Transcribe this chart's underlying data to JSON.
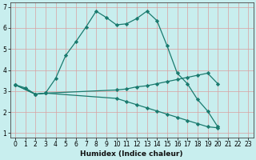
{
  "line1_x": [
    0,
    1,
    2,
    3,
    4,
    5,
    6,
    7,
    8,
    9,
    10,
    11,
    12,
    13,
    14,
    15,
    16,
    17,
    18,
    19,
    20
  ],
  "line1_y": [
    3.3,
    3.15,
    2.85,
    2.9,
    3.6,
    4.7,
    5.35,
    6.05,
    6.8,
    6.5,
    6.15,
    6.2,
    6.45,
    6.8,
    6.35,
    5.15,
    3.85,
    3.35,
    2.6,
    2.05,
    1.3
  ],
  "line2_x": [
    0,
    2,
    3,
    10,
    11,
    12,
    13,
    14,
    15,
    16,
    17,
    18,
    19,
    20
  ],
  "line2_y": [
    3.3,
    2.85,
    2.9,
    3.05,
    3.1,
    3.2,
    3.25,
    3.35,
    3.45,
    3.55,
    3.65,
    3.75,
    3.85,
    3.35
  ],
  "line3_x": [
    0,
    2,
    3,
    10,
    11,
    12,
    13,
    14,
    15,
    16,
    17,
    18,
    19,
    20
  ],
  "line3_y": [
    3.3,
    2.85,
    2.9,
    2.65,
    2.5,
    2.35,
    2.2,
    2.05,
    1.9,
    1.75,
    1.6,
    1.45,
    1.3,
    1.25
  ],
  "color": "#1a7a6e",
  "bg_color": "#c8eeee",
  "grid_major_color": "#d9a0a0",
  "xlabel": "Humidex (Indice chaleur)",
  "xlim": [
    -0.5,
    23.5
  ],
  "ylim": [
    0.8,
    7.2
  ],
  "yticks": [
    1,
    2,
    3,
    4,
    5,
    6,
    7
  ],
  "xticks": [
    0,
    1,
    2,
    3,
    4,
    5,
    6,
    7,
    8,
    9,
    10,
    11,
    12,
    13,
    14,
    15,
    16,
    17,
    18,
    19,
    20,
    21,
    22,
    23
  ],
  "xlabel_fontsize": 6.5,
  "tick_fontsize": 5.5
}
